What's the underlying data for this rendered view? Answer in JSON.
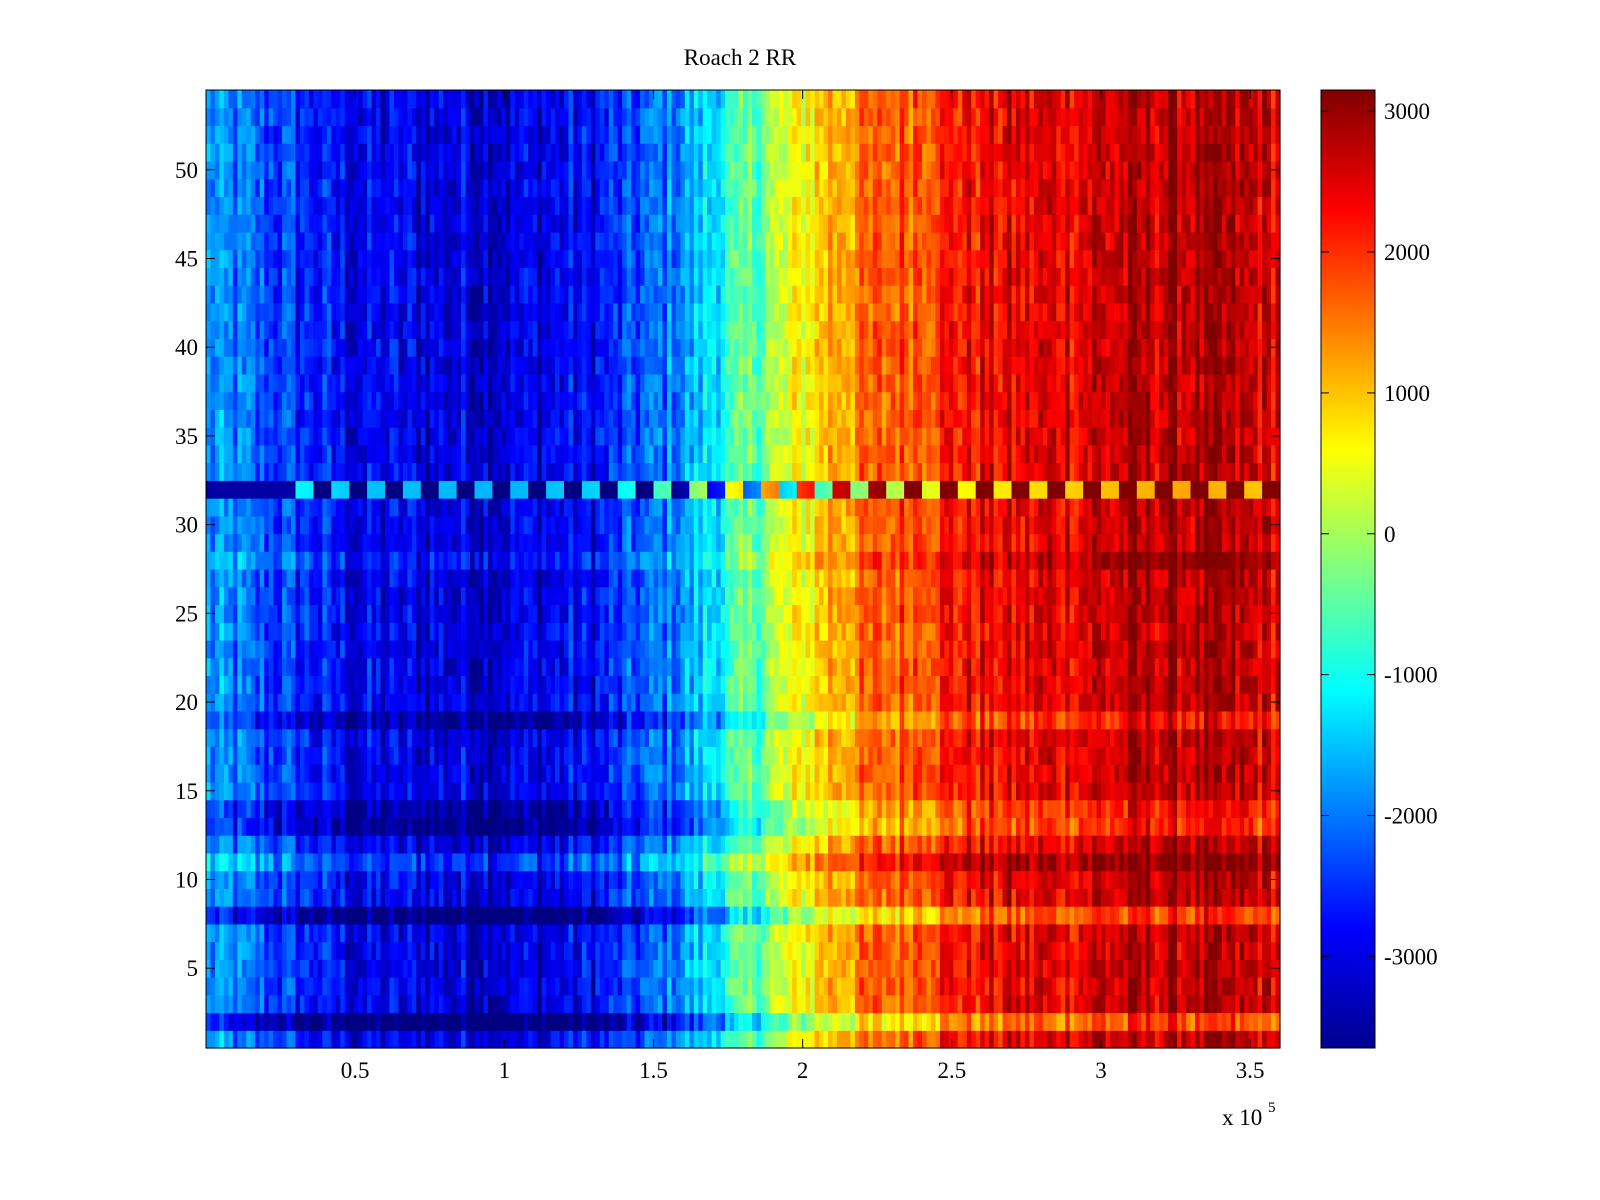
{
  "chart_data": {
    "type": "heatmap",
    "title": "Roach 2 RR",
    "xlabel": "",
    "ylabel": "",
    "x_range": [
      0,
      360000
    ],
    "y_range": [
      0.5,
      54.5
    ],
    "x_multiplier_label": "x 10",
    "x_multiplier_exponent": "5",
    "x_ticks": [
      {
        "value": 50000,
        "label": "0.5"
      },
      {
        "value": 100000,
        "label": "1"
      },
      {
        "value": 150000,
        "label": "1.5"
      },
      {
        "value": 200000,
        "label": "2"
      },
      {
        "value": 250000,
        "label": "2.5"
      },
      {
        "value": 300000,
        "label": "3"
      },
      {
        "value": 350000,
        "label": "3.5"
      }
    ],
    "y_ticks": [
      {
        "value": 5,
        "label": "5"
      },
      {
        "value": 10,
        "label": "10"
      },
      {
        "value": 15,
        "label": "15"
      },
      {
        "value": 20,
        "label": "20"
      },
      {
        "value": 25,
        "label": "25"
      },
      {
        "value": 30,
        "label": "30"
      },
      {
        "value": 35,
        "label": "35"
      },
      {
        "value": 40,
        "label": "40"
      },
      {
        "value": 45,
        "label": "45"
      },
      {
        "value": 50,
        "label": "50"
      }
    ],
    "rows": 54,
    "colormap": "jet",
    "colorbar": {
      "range": [
        -3650,
        3150
      ],
      "ticks": [
        {
          "value": 3000,
          "label": "3000"
        },
        {
          "value": 2000,
          "label": "2000"
        },
        {
          "value": 1000,
          "label": "1000"
        },
        {
          "value": 0,
          "label": "0"
        },
        {
          "value": -1000,
          "label": "-1000"
        },
        {
          "value": -2000,
          "label": "-2000"
        },
        {
          "value": -3000,
          "label": "-3000"
        }
      ]
    },
    "trend_profile": {
      "x": [
        0,
        20000,
        50000,
        100000,
        130000,
        160000,
        185000,
        210000,
        250000,
        300000,
        330000,
        360000
      ],
      "value": [
        -1800,
        -2300,
        -2900,
        -3000,
        -2800,
        -1800,
        -300,
        1200,
        2200,
        2600,
        2800,
        2500
      ]
    },
    "row_offsets": [
      {
        "row": 2,
        "offset": -900
      },
      {
        "row": 8,
        "offset": -800
      },
      {
        "row": 11,
        "offset": 500
      },
      {
        "row": 13,
        "offset": -600
      },
      {
        "row": 14,
        "offset": -500
      },
      {
        "row": 19,
        "offset": -500
      },
      {
        "row": 28,
        "offset": 300
      },
      {
        "row": 32,
        "offset": 0
      }
    ],
    "notable_row": {
      "row": 32,
      "note": "alternating block pattern"
    }
  }
}
